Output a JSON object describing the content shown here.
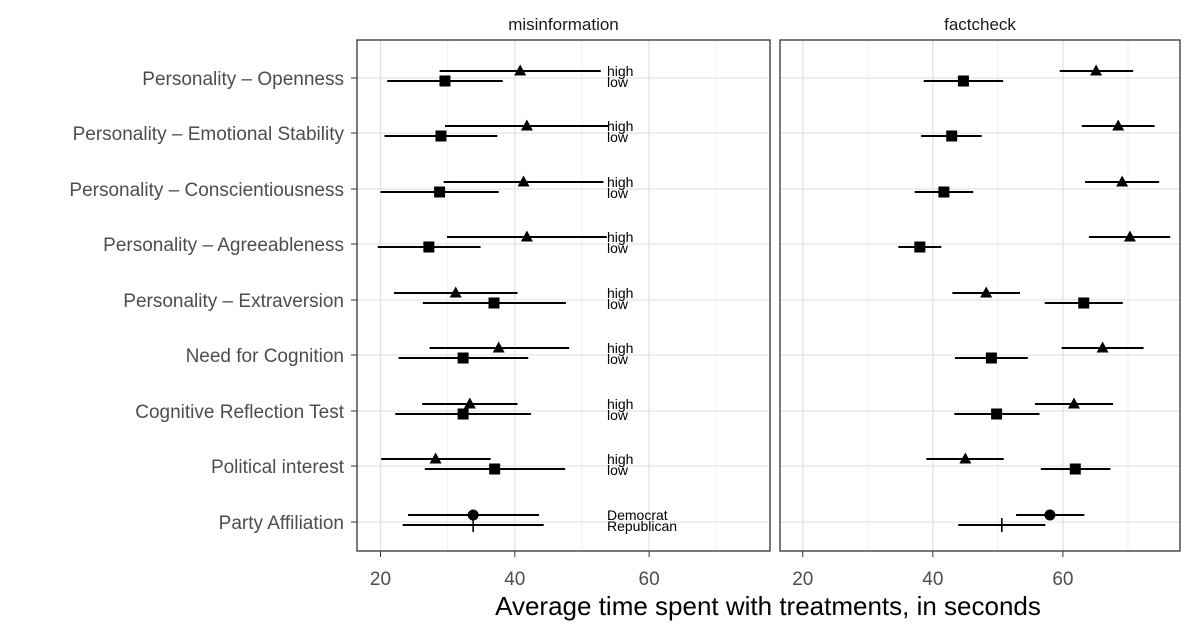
{
  "chart_data": {
    "type": "scatter",
    "subtype": "dot-and-whisker (point estimate with interval)",
    "xlabel": "Average time spent with treatments, in seconds",
    "ylabel": "",
    "xlim": [
      16.5,
      78
    ],
    "xticks": [
      20,
      40,
      60
    ],
    "grid": true,
    "legend": "none",
    "panels": [
      "misinformation",
      "factcheck"
    ],
    "categories": [
      "Personality – Openness",
      "Personality – Emotional Stability",
      "Personality – Conscientiousness",
      "Personality – Agreeableness",
      "Personality – Extraversion",
      "Need for Cognition",
      "Cognitive Reflection Test",
      "Political interest",
      "Party Affiliation"
    ],
    "group_labels": [
      [
        "high",
        "low"
      ],
      [
        "high",
        "low"
      ],
      [
        "high",
        "low"
      ],
      [
        "high",
        "low"
      ],
      [
        "high",
        "low"
      ],
      [
        "high",
        "low"
      ],
      [
        "high",
        "low"
      ],
      [
        "high",
        "low"
      ],
      [
        "Democrat",
        "Republican"
      ]
    ],
    "group_shapes": [
      "triangle",
      "square",
      "circle",
      "plus"
    ],
    "data": {
      "misinformation": [
        [
          {
            "est": 40.8,
            "lo": 28.8,
            "hi": 52.8
          },
          {
            "est": 29.6,
            "lo": 21.0,
            "hi": 38.2
          }
        ],
        [
          {
            "est": 41.8,
            "lo": 29.6,
            "hi": 54.0
          },
          {
            "est": 29.0,
            "lo": 20.6,
            "hi": 37.4
          }
        ],
        [
          {
            "est": 41.3,
            "lo": 29.4,
            "hi": 53.2
          },
          {
            "est": 28.8,
            "lo": 20.0,
            "hi": 37.6
          }
        ],
        [
          {
            "est": 41.8,
            "lo": 29.9,
            "hi": 53.7
          },
          {
            "est": 27.2,
            "lo": 19.6,
            "hi": 34.9
          }
        ],
        [
          {
            "est": 31.2,
            "lo": 22.0,
            "hi": 40.4
          },
          {
            "est": 36.9,
            "lo": 26.3,
            "hi": 47.6
          }
        ],
        [
          {
            "est": 37.6,
            "lo": 27.3,
            "hi": 48.1
          },
          {
            "est": 32.3,
            "lo": 22.7,
            "hi": 42.0
          }
        ],
        [
          {
            "est": 33.3,
            "lo": 26.2,
            "hi": 40.4
          },
          {
            "est": 32.3,
            "lo": 22.2,
            "hi": 42.4
          }
        ],
        [
          {
            "est": 28.2,
            "lo": 20.1,
            "hi": 36.4
          },
          {
            "est": 37.0,
            "lo": 26.6,
            "hi": 47.5
          }
        ],
        [
          {
            "est": 33.8,
            "lo": 24.1,
            "hi": 43.6
          },
          {
            "est": 33.8,
            "lo": 23.3,
            "hi": 44.3
          }
        ]
      ],
      "factcheck": [
        [
          {
            "est": 65.1,
            "lo": 59.5,
            "hi": 70.8
          },
          {
            "est": 44.7,
            "lo": 38.6,
            "hi": 50.8
          }
        ],
        [
          {
            "est": 68.5,
            "lo": 62.9,
            "hi": 74.1
          },
          {
            "est": 42.9,
            "lo": 38.2,
            "hi": 47.5
          }
        ],
        [
          {
            "est": 69.1,
            "lo": 63.4,
            "hi": 74.8
          },
          {
            "est": 41.7,
            "lo": 37.2,
            "hi": 46.2
          }
        ],
        [
          {
            "est": 70.3,
            "lo": 64.0,
            "hi": 76.5
          },
          {
            "est": 38.0,
            "lo": 34.7,
            "hi": 41.3
          }
        ],
        [
          {
            "est": 48.2,
            "lo": 43.0,
            "hi": 53.4
          },
          {
            "est": 63.2,
            "lo": 57.2,
            "hi": 69.2
          }
        ],
        [
          {
            "est": 66.1,
            "lo": 59.8,
            "hi": 72.4
          },
          {
            "est": 49.0,
            "lo": 43.4,
            "hi": 54.6
          }
        ],
        [
          {
            "est": 61.7,
            "lo": 55.7,
            "hi": 67.7
          },
          {
            "est": 49.8,
            "lo": 43.3,
            "hi": 56.4
          }
        ],
        [
          {
            "est": 45.0,
            "lo": 39.0,
            "hi": 50.9
          },
          {
            "est": 61.9,
            "lo": 56.6,
            "hi": 67.3
          }
        ],
        [
          {
            "est": 58.0,
            "lo": 52.8,
            "hi": 63.3
          },
          {
            "est": 50.6,
            "lo": 43.9,
            "hi": 57.3
          }
        ]
      ]
    }
  }
}
